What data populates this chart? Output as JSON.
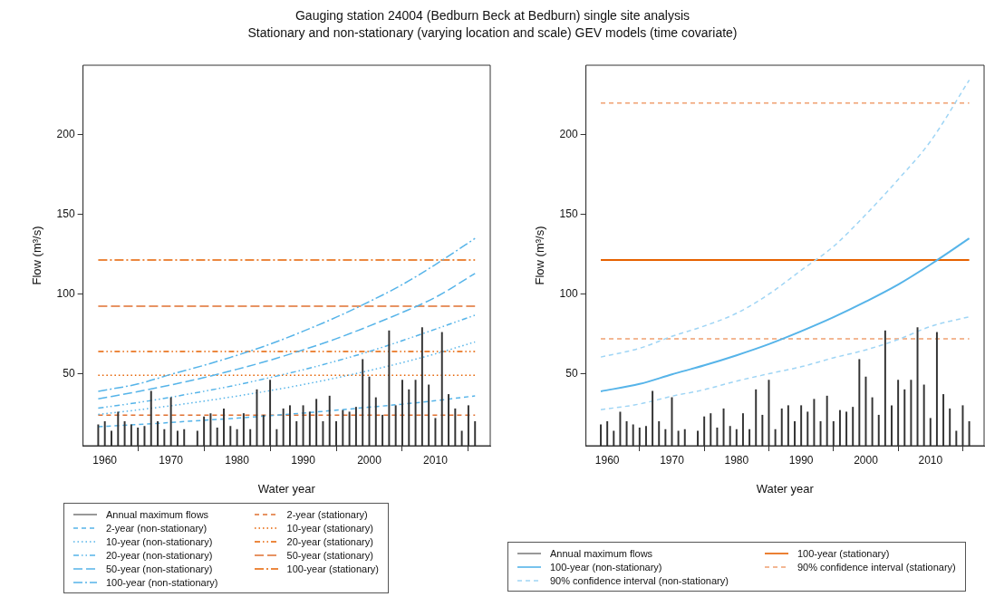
{
  "chart_data": [
    {
      "type": "line",
      "title": "Gauging station 24004 (Bedburn Beck at Bedburn) single site analysis",
      "subtitle": "Stationary and non-stationary (varying location and scale) GEV models (time covariate)",
      "xlabel": "Water year",
      "ylabel": "Flow (m³/s)",
      "xlim": [
        1956.7,
        2018.3
      ],
      "xticks": [
        1960,
        1970,
        1980,
        1990,
        2000,
        2010
      ],
      "ylim": [
        4.8,
        243.8
      ],
      "yticks": [
        50,
        100,
        150,
        200
      ],
      "grid": false,
      "legend": "bottom",
      "marker": "none",
      "series": [
        {
          "name": "Annual maximum flows",
          "type": "bar",
          "color": "#333333",
          "x": [
            1959,
            1960,
            1961,
            1962,
            1963,
            1964,
            1965,
            1966,
            1967,
            1968,
            1969,
            1970,
            1971,
            1972,
            1973,
            1974,
            1975,
            1976,
            1977,
            1978,
            1979,
            1980,
            1981,
            1982,
            1983,
            1984,
            1985,
            1986,
            1987,
            1988,
            1989,
            1990,
            1991,
            1992,
            1993,
            1994,
            1995,
            1996,
            1997,
            1998,
            1999,
            2000,
            2001,
            2002,
            2003,
            2004,
            2005,
            2006,
            2007,
            2008,
            2009,
            2010,
            2011,
            2012,
            2013,
            2014,
            2015,
            2016
          ],
          "values": [
            18,
            20,
            14,
            26,
            20,
            18,
            16,
            17,
            39,
            20,
            15,
            35,
            14,
            15,
            null,
            14,
            23,
            25,
            16,
            28,
            17,
            15,
            25,
            15,
            40,
            24,
            46,
            15,
            28,
            30,
            20,
            30,
            26,
            34,
            20,
            36,
            20,
            27,
            26,
            29,
            59,
            48,
            35,
            24,
            77,
            30,
            46,
            40,
            46,
            79,
            43,
            22,
            76,
            37,
            28,
            14,
            30,
            20
          ]
        },
        {
          "name": "2-year (non-stationary)",
          "line_style": "dashed",
          "color": "#56b4e9",
          "x": [
            1959,
            1965,
            1970,
            1975,
            1980,
            1985,
            1990,
            1995,
            2000,
            2005,
            2010,
            2016
          ],
          "values": [
            16.7,
            18.1,
            19.4,
            20.8,
            22.1,
            23.7,
            25.3,
            27.1,
            29,
            30.9,
            33.1,
            36.1
          ]
        },
        {
          "name": "10-year (non-stationary)",
          "line_style": "dotted",
          "color": "#56b4e9",
          "x": [
            1959,
            1965,
            1970,
            1975,
            1980,
            1985,
            1990,
            1995,
            2000,
            2005,
            2010,
            2016
          ],
          "values": [
            24.5,
            27.3,
            29.9,
            32.8,
            36,
            39.4,
            43.2,
            47.4,
            52,
            57,
            62.5,
            70
          ]
        },
        {
          "name": "20-year (non-stationary)",
          "line_style": "dashdot",
          "color": "#56b4e9",
          "x": [
            1959,
            1965,
            1970,
            1975,
            1980,
            1985,
            1990,
            1995,
            2000,
            2005,
            2010,
            2016
          ],
          "values": [
            28.4,
            31.9,
            35.3,
            39,
            43,
            47.6,
            52.5,
            58,
            64,
            70.8,
            78,
            86.8
          ]
        },
        {
          "name": "50-year (non-stationary)",
          "line_style": "longdash",
          "color": "#56b4e9",
          "x": [
            1959,
            1965,
            1970,
            1975,
            1980,
            1985,
            1990,
            1995,
            2000,
            2005,
            2010,
            2016
          ],
          "values": [
            34.2,
            38.8,
            43,
            47.6,
            52.8,
            58.5,
            65,
            72,
            80,
            88.5,
            98,
            113
          ]
        },
        {
          "name": "100-year (non-stationary)",
          "line_style": "longdashdot",
          "color": "#56b4e9",
          "x": [
            1959,
            1965,
            1970,
            1975,
            1980,
            1985,
            1990,
            1995,
            2000,
            2005,
            2010,
            2016
          ],
          "values": [
            39,
            43.6,
            49.6,
            55.3,
            61.6,
            68.6,
            76.7,
            85.5,
            95.3,
            106,
            118.6,
            135
          ]
        },
        {
          "name": "2-year (stationary)",
          "line_style": "dashed",
          "color": "#e07030",
          "x": [
            1959,
            2016
          ],
          "values": [
            24,
            24
          ]
        },
        {
          "name": "10-year (stationary)",
          "line_style": "dotted",
          "color": "#e66100",
          "x": [
            1959,
            2016
          ],
          "values": [
            49,
            49
          ]
        },
        {
          "name": "20-year (stationary)",
          "line_style": "dashdot",
          "color": "#e66100",
          "x": [
            1959,
            2016
          ],
          "values": [
            64,
            64
          ]
        },
        {
          "name": "50-year (stationary)",
          "line_style": "longdash",
          "color": "#e07030",
          "x": [
            1959,
            2016
          ],
          "values": [
            92.5,
            92.5
          ]
        },
        {
          "name": "100-year (stationary)",
          "line_style": "longdashdot",
          "color": "#e66100",
          "x": [
            1959,
            2016
          ],
          "values": [
            121.4,
            121.4
          ]
        }
      ]
    },
    {
      "type": "line",
      "xlabel": "Water year",
      "ylabel": "Flow (m³/s)",
      "xlim": [
        1956.7,
        2018.3
      ],
      "xticks": [
        1960,
        1970,
        1980,
        1990,
        2000,
        2010
      ],
      "ylim": [
        4.8,
        243.8
      ],
      "yticks": [
        50,
        100,
        150,
        200
      ],
      "grid": false,
      "legend": "bottom",
      "marker": "none",
      "series": [
        {
          "name": "Annual maximum flows",
          "type": "bar",
          "color": "#333333",
          "x": [
            1959,
            1960,
            1961,
            1962,
            1963,
            1964,
            1965,
            1966,
            1967,
            1968,
            1969,
            1970,
            1971,
            1972,
            1973,
            1974,
            1975,
            1976,
            1977,
            1978,
            1979,
            1980,
            1981,
            1982,
            1983,
            1984,
            1985,
            1986,
            1987,
            1988,
            1989,
            1990,
            1991,
            1992,
            1993,
            1994,
            1995,
            1996,
            1997,
            1998,
            1999,
            2000,
            2001,
            2002,
            2003,
            2004,
            2005,
            2006,
            2007,
            2008,
            2009,
            2010,
            2011,
            2012,
            2013,
            2014,
            2015,
            2016
          ],
          "values": [
            18,
            20,
            14,
            26,
            20,
            18,
            16,
            17,
            39,
            20,
            15,
            35,
            14,
            15,
            null,
            14,
            23,
            25,
            16,
            28,
            17,
            15,
            25,
            15,
            40,
            24,
            46,
            15,
            28,
            30,
            20,
            30,
            26,
            34,
            20,
            36,
            20,
            27,
            26,
            29,
            59,
            48,
            35,
            24,
            77,
            30,
            46,
            40,
            46,
            79,
            43,
            22,
            76,
            37,
            28,
            14,
            30,
            20
          ]
        },
        {
          "name": "100-year (non-stationary)",
          "line_style": "solid",
          "color": "#56b4e9",
          "x": [
            1959,
            1965,
            1970,
            1975,
            1980,
            1985,
            1990,
            1995,
            2000,
            2005,
            2010,
            2016
          ],
          "values": [
            39,
            43.6,
            49.6,
            55.3,
            61.6,
            68.6,
            76.7,
            85.5,
            95.3,
            106,
            118.6,
            135
          ]
        },
        {
          "name": "90% confidence interval (non-stationary)",
          "line_style": "dashed",
          "color": "#9fd5f5",
          "x": [
            1959,
            1965,
            1970,
            1975,
            1980,
            1985,
            1990,
            1995,
            2000,
            2005,
            2010,
            2016
          ],
          "values": [
            60.5,
            66,
            73.5,
            80,
            88,
            100,
            115,
            130,
            150,
            172,
            196,
            234.5
          ]
        },
        {
          "line_style": "dashed",
          "color": "#9fd5f5",
          "x": [
            1959,
            1965,
            1970,
            1975,
            1980,
            1985,
            1990,
            1995,
            2000,
            2005,
            2010,
            2016
          ],
          "values": [
            27.4,
            31,
            35.9,
            40,
            45.4,
            50,
            54.4,
            60,
            65,
            71.5,
            79.7,
            85.8
          ]
        },
        {
          "name": "100-year (stationary)",
          "line_style": "solid",
          "color": "#e66100",
          "x": [
            1959,
            2016
          ],
          "values": [
            121.4,
            121.4
          ]
        },
        {
          "name": "90% confidence interval (stationary)",
          "line_style": "dashed",
          "color": "#f0a070",
          "x": [
            1959,
            2016
          ],
          "values": [
            220,
            220
          ]
        },
        {
          "line_style": "dashed",
          "color": "#f0a070",
          "x": [
            1959,
            2016
          ],
          "values": [
            72,
            72
          ]
        }
      ]
    }
  ]
}
